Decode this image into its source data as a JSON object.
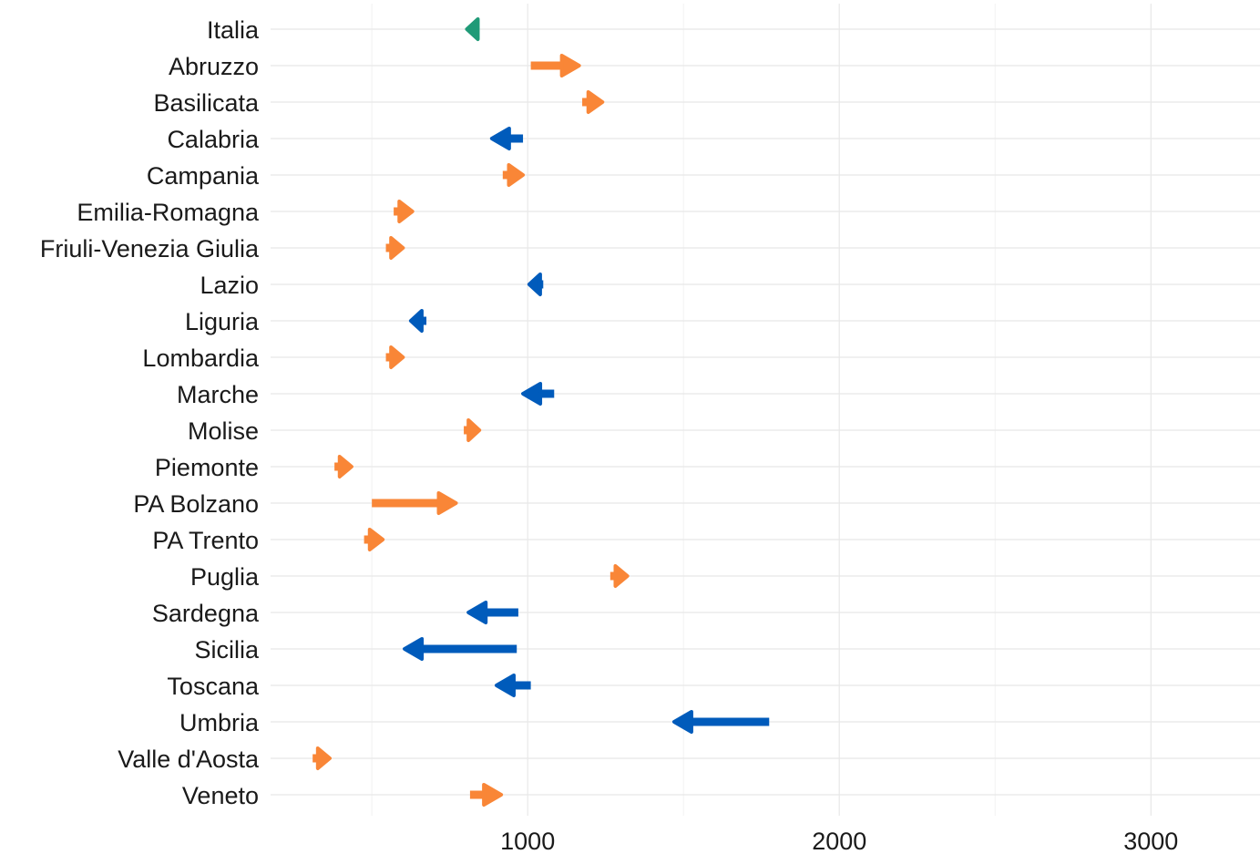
{
  "chart_data": {
    "type": "arrow",
    "title": "",
    "xlabel": "",
    "ylabel": "",
    "xlim": [
      175,
      3350
    ],
    "x_ticks": [
      1000,
      2000,
      3000
    ],
    "x_tick_labels": [
      "1000",
      "2000",
      "3000"
    ],
    "grid": true,
    "legend": "none",
    "colors": {
      "increase": "#F98637",
      "decrease": "#005BBB",
      "national": "#1F9A77"
    },
    "categories": [
      "Italia",
      "Abruzzo",
      "Basilicata",
      "Calabria",
      "Campania",
      "Emilia-Romagna",
      "Friuli-Venezia Giulia",
      "Lazio",
      "Liguria",
      "Lombardia",
      "Marche",
      "Molise",
      "Piemonte",
      "PA Bolzano",
      "PA Trento",
      "Puglia",
      "Sardegna",
      "Sicilia",
      "Toscana",
      "Umbria",
      "Valle d'Aosta",
      "Veneto"
    ],
    "series": [
      {
        "label": "Italia",
        "start": 845,
        "end": 805,
        "group": "national"
      },
      {
        "label": "Abruzzo",
        "start": 1010,
        "end": 1165,
        "group": "increase"
      },
      {
        "label": "Basilicata",
        "start": 1175,
        "end": 1240,
        "group": "increase"
      },
      {
        "label": "Calabria",
        "start": 985,
        "end": 885,
        "group": "decrease"
      },
      {
        "label": "Campania",
        "start": 920,
        "end": 985,
        "group": "increase"
      },
      {
        "label": "Emilia-Romagna",
        "start": 570,
        "end": 630,
        "group": "increase"
      },
      {
        "label": "Friuli-Venezia Giulia",
        "start": 545,
        "end": 600,
        "group": "increase"
      },
      {
        "label": "Lazio",
        "start": 1050,
        "end": 1005,
        "group": "decrease"
      },
      {
        "label": "Liguria",
        "start": 675,
        "end": 625,
        "group": "decrease"
      },
      {
        "label": "Lombardia",
        "start": 545,
        "end": 600,
        "group": "increase"
      },
      {
        "label": "Marche",
        "start": 1085,
        "end": 985,
        "group": "decrease"
      },
      {
        "label": "Molise",
        "start": 795,
        "end": 845,
        "group": "increase"
      },
      {
        "label": "Piemonte",
        "start": 380,
        "end": 435,
        "group": "increase"
      },
      {
        "label": "PA Bolzano",
        "start": 500,
        "end": 770,
        "group": "increase"
      },
      {
        "label": "PA Trento",
        "start": 475,
        "end": 535,
        "group": "increase"
      },
      {
        "label": "Puglia",
        "start": 1265,
        "end": 1320,
        "group": "increase"
      },
      {
        "label": "Sardegna",
        "start": 970,
        "end": 810,
        "group": "decrease"
      },
      {
        "label": "Sicilia",
        "start": 965,
        "end": 605,
        "group": "decrease"
      },
      {
        "label": "Toscana",
        "start": 1010,
        "end": 900,
        "group": "decrease"
      },
      {
        "label": "Umbria",
        "start": 1775,
        "end": 1470,
        "group": "decrease"
      },
      {
        "label": "Valle d'Aosta",
        "start": 310,
        "end": 365,
        "group": "increase"
      },
      {
        "label": "Veneto",
        "start": 815,
        "end": 915,
        "group": "increase"
      }
    ]
  }
}
